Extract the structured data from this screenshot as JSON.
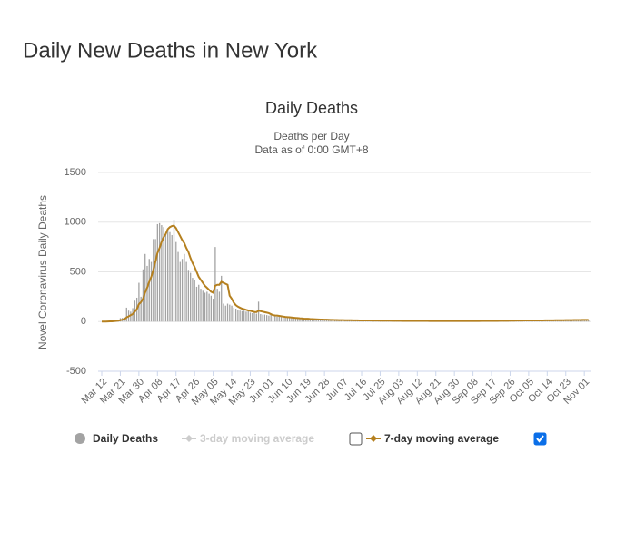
{
  "page_title": "Daily New Deaths in New York",
  "chart_data": {
    "type": "bar",
    "title": "Daily Deaths",
    "subtitle": [
      "Deaths per Day",
      "Data as of 0:00 GMT+8"
    ],
    "y_label": "Novel Coronavirus Daily Deaths",
    "ylim": [
      -500,
      1500
    ],
    "yticks": [
      -500,
      0,
      500,
      1000,
      1500
    ],
    "grid": true,
    "legend": "bottom",
    "categories": [
      "Mar 12",
      null,
      null,
      null,
      null,
      null,
      null,
      null,
      null,
      "Mar 21",
      null,
      null,
      null,
      null,
      null,
      null,
      null,
      null,
      "Mar 30",
      null,
      null,
      null,
      null,
      null,
      null,
      null,
      null,
      "Apr 08",
      null,
      null,
      null,
      null,
      null,
      null,
      null,
      null,
      "Apr 17",
      null,
      null,
      null,
      null,
      null,
      null,
      null,
      null,
      "Apr 26",
      null,
      null,
      null,
      null,
      null,
      null,
      null,
      null,
      "May 05",
      null,
      null,
      null,
      null,
      null,
      null,
      null,
      null,
      "May 14",
      null,
      null,
      null,
      null,
      null,
      null,
      null,
      null,
      "May 23",
      null,
      null,
      null,
      null,
      null,
      null,
      null,
      null,
      "Jun 01",
      null,
      null,
      null,
      null,
      null,
      null,
      null,
      null,
      "Jun 10",
      null,
      null,
      null,
      null,
      null,
      null,
      null,
      null,
      "Jun 19",
      null,
      null,
      null,
      null,
      null,
      null,
      null,
      null,
      "Jun 28",
      null,
      null,
      null,
      null,
      null,
      null,
      null,
      null,
      "Jul 07",
      null,
      null,
      null,
      null,
      null,
      null,
      null,
      null,
      "Jul 16",
      null,
      null,
      null,
      null,
      null,
      null,
      null,
      null,
      "Jul 25",
      null,
      null,
      null,
      null,
      null,
      null,
      null,
      null,
      "Aug 03",
      null,
      null,
      null,
      null,
      null,
      null,
      null,
      null,
      "Aug 12",
      null,
      null,
      null,
      null,
      null,
      null,
      null,
      null,
      "Aug 21",
      null,
      null,
      null,
      null,
      null,
      null,
      null,
      null,
      "Aug 30",
      null,
      null,
      null,
      null,
      null,
      null,
      null,
      null,
      "Sep 08",
      null,
      null,
      null,
      null,
      null,
      null,
      null,
      null,
      "Sep 17",
      null,
      null,
      null,
      null,
      null,
      null,
      null,
      null,
      "Sep 26",
      null,
      null,
      null,
      null,
      null,
      null,
      null,
      null,
      "Oct 05",
      null,
      null,
      null,
      null,
      null,
      null,
      null,
      null,
      "Oct 14",
      null,
      null,
      null,
      null,
      null,
      null,
      null,
      null,
      "Oct 23",
      null,
      null,
      null,
      null,
      null,
      null,
      null,
      null,
      "Nov 01",
      null,
      null
    ],
    "series": [
      {
        "name": "Daily Deaths",
        "type": "bar",
        "color": "#a3a3a3",
        "values": [
          0,
          0,
          2,
          3,
          5,
          5,
          12,
          20,
          20,
          35,
          38,
          40,
          140,
          110,
          100,
          135,
          210,
          240,
          390,
          250,
          525,
          680,
          560,
          630,
          600,
          830,
          830,
          980,
          990,
          970,
          950,
          880,
          930,
          900,
          870,
          1025,
          800,
          700,
          600,
          630,
          680,
          600,
          520,
          490,
          440,
          420,
          350,
          370,
          330,
          310,
          290,
          300,
          280,
          260,
          230,
          750,
          330,
          300,
          460,
          180,
          160,
          180,
          170,
          160,
          140,
          130,
          120,
          110,
          105,
          110,
          100,
          110,
          90,
          85,
          90,
          80,
          200,
          75,
          70,
          70,
          65,
          60,
          70,
          55,
          60,
          50,
          50,
          45,
          40,
          45,
          40,
          35,
          38,
          35,
          30,
          32,
          28,
          30,
          25,
          27,
          25,
          22,
          24,
          20,
          22,
          18,
          20,
          18,
          20,
          16,
          18,
          15,
          17,
          14,
          15,
          13,
          16,
          14,
          12,
          15,
          13,
          14,
          12,
          13,
          11,
          12,
          10,
          12,
          11,
          10,
          12,
          9,
          11,
          10,
          9,
          10,
          8,
          9,
          10,
          8,
          9,
          7,
          8,
          9,
          7,
          8,
          6,
          8,
          7,
          7,
          6,
          8,
          5,
          7,
          6,
          8,
          6,
          7,
          5,
          7,
          6,
          8,
          6,
          5,
          7,
          6,
          5,
          8,
          6,
          7,
          6,
          5,
          7,
          6,
          8,
          5,
          6,
          7,
          6,
          5,
          8,
          6,
          7,
          5,
          6,
          8,
          7,
          5,
          6,
          9,
          7,
          8,
          6,
          7,
          10,
          8,
          7,
          9,
          10,
          8,
          9,
          11,
          9,
          10,
          12,
          11,
          9,
          12,
          10,
          13,
          11,
          12,
          14,
          12,
          10,
          13,
          15,
          12,
          14,
          13,
          16,
          14,
          12,
          15,
          13,
          17,
          15,
          14,
          16,
          18,
          15,
          17,
          16,
          19,
          16,
          18,
          17
        ]
      },
      {
        "name": "3-day moving average",
        "type": "line",
        "color": "#cccccc",
        "visible": false
      },
      {
        "name": "7-day moving average",
        "type": "line",
        "color": "#b5801f",
        "visible": true,
        "values": [
          0,
          0,
          0,
          1,
          2,
          2,
          4,
          7,
          9,
          14,
          19,
          24,
          41,
          52,
          64,
          76,
          100,
          124,
          175,
          195,
          230,
          290,
          340,
          400,
          450,
          520,
          600,
          690,
          740,
          800,
          850,
          880,
          930,
          950,
          960,
          965,
          940,
          900,
          860,
          820,
          790,
          740,
          700,
          640,
          590,
          550,
          500,
          450,
          420,
          390,
          360,
          340,
          320,
          300,
          290,
          360,
          370,
          370,
          400,
          390,
          380,
          370,
          260,
          230,
          190,
          165,
          150,
          140,
          130,
          125,
          118,
          112,
          108,
          102,
          97,
          95,
          110,
          105,
          100,
          95,
          90,
          85,
          75,
          65,
          62,
          60,
          57,
          54,
          50,
          47,
          45,
          43,
          41,
          39,
          37,
          35,
          33,
          32,
          30,
          29,
          28,
          26,
          25,
          24,
          23,
          22,
          21,
          20,
          19,
          19,
          18,
          17,
          17,
          16,
          16,
          15,
          15,
          15,
          14,
          14,
          14,
          14,
          13,
          13,
          13,
          12,
          12,
          12,
          11,
          11,
          11,
          10,
          10,
          10,
          10,
          9,
          9,
          9,
          9,
          9,
          9,
          8,
          8,
          8,
          8,
          8,
          7,
          7,
          7,
          7,
          7,
          7,
          7,
          7,
          7,
          7,
          7,
          7,
          7,
          6,
          6,
          6,
          6,
          6,
          6,
          6,
          6,
          6,
          6,
          6,
          6,
          6,
          6,
          6,
          6,
          6,
          6,
          6,
          6,
          6,
          6,
          6,
          6,
          6,
          7,
          7,
          7,
          7,
          7,
          7,
          7,
          7,
          7,
          8,
          8,
          8,
          8,
          8,
          9,
          9,
          9,
          10,
          10,
          10,
          10,
          11,
          11,
          11,
          11,
          11,
          12,
          12,
          12,
          12,
          12,
          13,
          13,
          13,
          13,
          13,
          14,
          14,
          14,
          14,
          14,
          15,
          15,
          15,
          15,
          16,
          16,
          16,
          16,
          17,
          17,
          17,
          17
        ]
      }
    ]
  }
}
